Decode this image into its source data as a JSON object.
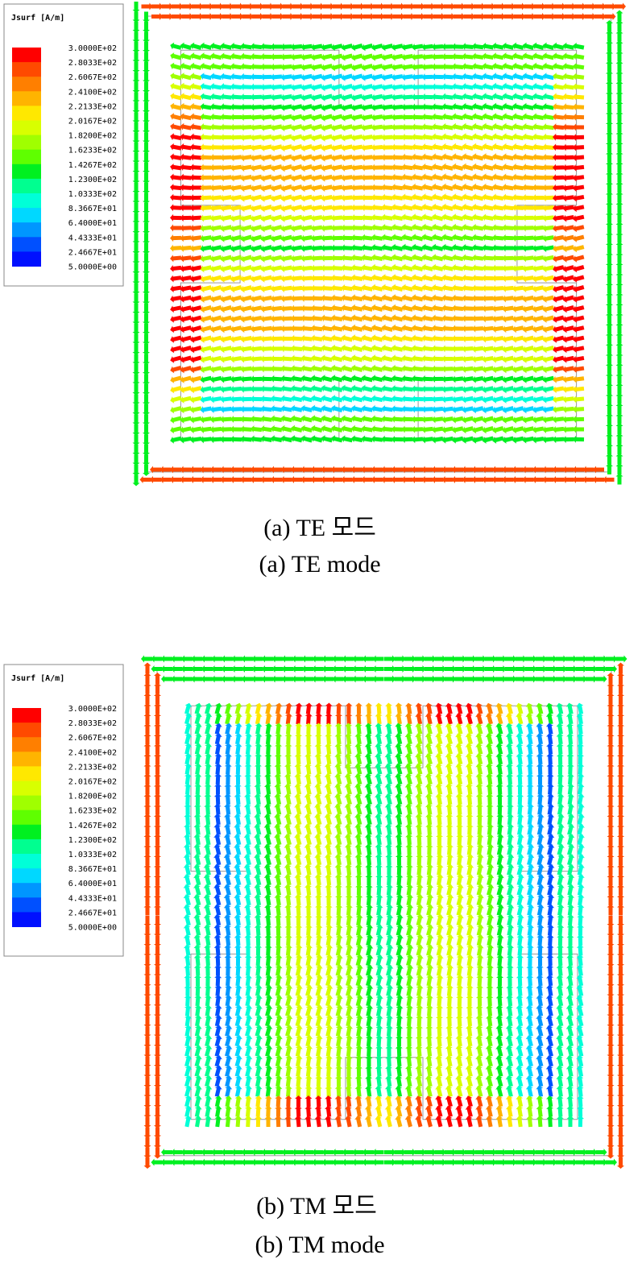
{
  "legend_colors": [
    "#ff0000",
    "#ff4a00",
    "#ff7f00",
    "#ffb400",
    "#ffe800",
    "#d8ff00",
    "#a0ff00",
    "#5fff00",
    "#00f020",
    "#00ff90",
    "#00ffd8",
    "#00d8ff",
    "#0096ff",
    "#0050ff",
    "#0010ff"
  ],
  "panels": [
    {
      "legend_title": "Jsurf [A/m]",
      "legend_labels": [
        "3.0000E+02",
        "2.8033E+02",
        "2.6067E+02",
        "2.4100E+02",
        "2.2133E+02",
        "2.0167E+02",
        "1.8200E+02",
        "1.6233E+02",
        "1.4267E+02",
        "1.2300E+02",
        "1.0333E+02",
        "8.3667E+01",
        "6.4000E+01",
        "4.4333E+01",
        "2.4667E+01",
        "5.0000E+00"
      ],
      "mode": "TE",
      "caption_ko": "(a)  TE  모드",
      "caption_en": "(a)  TE  mode"
    },
    {
      "legend_title": "Jsurf [A/m]",
      "legend_labels": [
        "3.0000E+02",
        "2.8033E+02",
        "2.6067E+02",
        "2.4100E+02",
        "2.2133E+02",
        "2.0167E+02",
        "1.8200E+02",
        "1.6233E+02",
        "1.4267E+02",
        "1.2300E+02",
        "1.0333E+02",
        "8.3667E+01",
        "6.4000E+01",
        "4.4333E+01",
        "2.4667E+01",
        "5.0000E+00"
      ],
      "mode": "TM",
      "caption_ko": "(b)  TM  모드",
      "caption_en": "(b)  TM  mode"
    }
  ]
}
